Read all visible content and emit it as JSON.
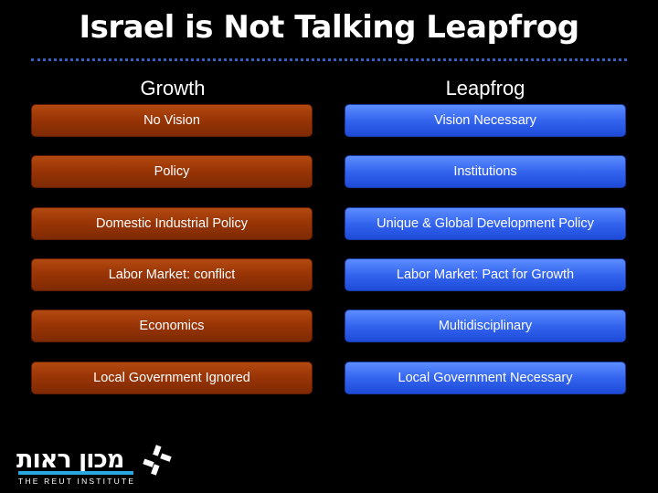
{
  "title": "Israel is Not Talking Leapfrog",
  "columns": {
    "left_header": "Growth",
    "right_header": "Leapfrog"
  },
  "left_items": [
    "No Vision",
    "Policy",
    "Domestic Industrial Policy",
    "Labor Market: conflict",
    "Economics",
    "Local Government Ignored"
  ],
  "right_items": [
    "Vision Necessary",
    "Institutions",
    "Unique & Global Development Policy",
    "Labor Market: Pact for Growth",
    "Multidisciplinary",
    "Local Government Necessary"
  ],
  "logo": {
    "hebrew": "מכון ראות",
    "english": "THE REUT INSTITUTE",
    "icon": "reut-institute-logo-icon"
  },
  "colors": {
    "background": "#000000",
    "left_box": "#9a3506",
    "right_box": "#3465ef",
    "divider": "#3b5fc0",
    "logo_accent": "#29a8e0"
  }
}
